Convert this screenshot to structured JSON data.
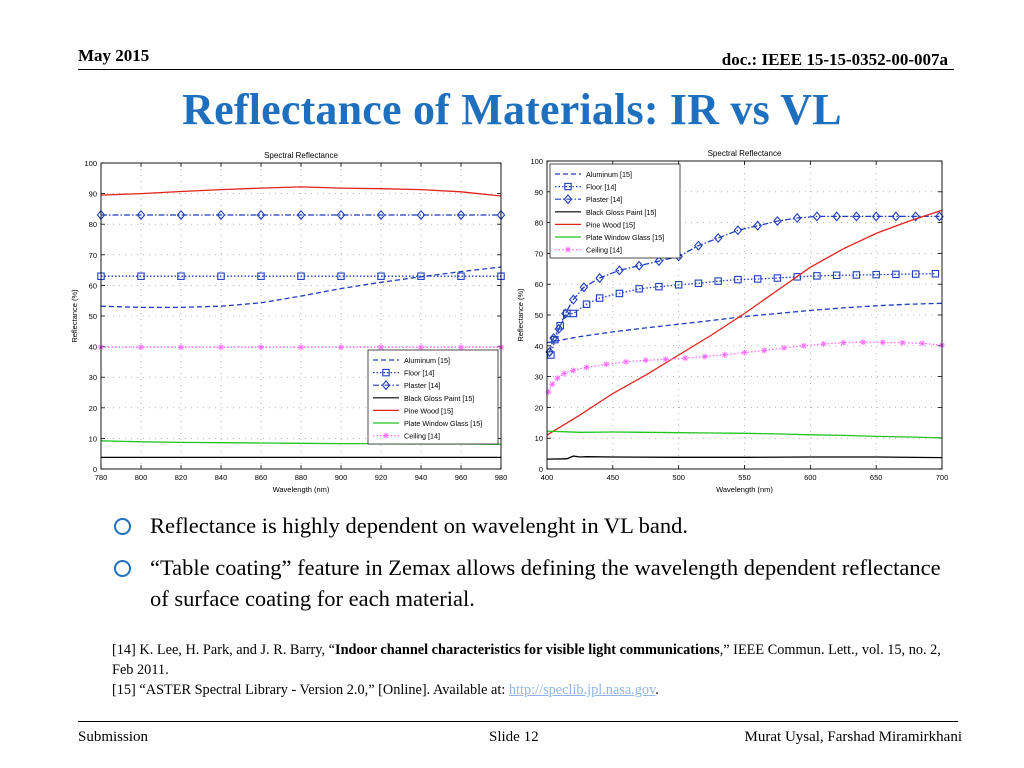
{
  "header": {
    "date": "May 2015",
    "doc": "doc.: IEEE 15-15-0352-00-007a"
  },
  "title": "Reflectance of Materials: IR vs VL",
  "bullets": [
    "Reflectance is highly dependent on wavelenght in VL band.",
    "“Table coating” feature in Zemax allows defining the wavelength dependent reflectance of surface coating for each material."
  ],
  "references": {
    "ref14_prefix": "[14] K. Lee, H. Park, and J. R. Barry, “",
    "ref14_title": "Indoor channel characteristics for visible light communications",
    "ref14_suffix": ",” IEEE Commun. Lett., vol. 15,  no. 2, Feb 2011.",
    "ref15_prefix": "[15] “ASTER Spectral Library - Version 2.0,” [Online]. Available at: ",
    "ref15_link": "http://speclib.jpl.nasa.gov",
    "ref15_suffix": "."
  },
  "footer": {
    "left": "Submission",
    "center": "Slide 12",
    "right": "Murat Uysal, Farshad Miramirkhani"
  },
  "chart_data": [
    {
      "type": "line",
      "title": "Spectral Reflectance",
      "xlabel": "Wavelength (nm)",
      "ylabel": "Reflectance (%)",
      "xlim": [
        780,
        980
      ],
      "ylim": [
        0,
        100
      ],
      "xticks": [
        780,
        800,
        820,
        840,
        860,
        880,
        900,
        920,
        940,
        960,
        980
      ],
      "yticks": [
        0,
        10,
        20,
        30,
        40,
        50,
        60,
        70,
        80,
        90,
        100
      ],
      "legend_position": "bottom-right",
      "series": [
        {
          "name": "Aluminum [15]",
          "color": "#1f3fbf",
          "dash": "dashed",
          "marker": "none",
          "x": [
            780,
            800,
            820,
            840,
            860,
            880,
            900,
            920,
            940,
            960,
            980
          ],
          "y": [
            53.2,
            52.8,
            52.8,
            53.2,
            54.3,
            56.5,
            59,
            61,
            62.8,
            64.5,
            66
          ]
        },
        {
          "name": "Floor [14]",
          "color": "#1f3fbf",
          "dash": "dotted",
          "marker": "square",
          "x": [
            780,
            800,
            820,
            840,
            860,
            880,
            900,
            920,
            940,
            960,
            980
          ],
          "y": [
            63,
            63,
            63,
            63,
            63,
            63,
            63,
            63,
            63,
            63,
            63
          ]
        },
        {
          "name": "Plaster [14]",
          "color": "#1f3fbf",
          "dash": "dashdot",
          "marker": "diamond",
          "x": [
            780,
            800,
            820,
            840,
            860,
            880,
            900,
            920,
            940,
            960,
            980
          ],
          "y": [
            83,
            83,
            83,
            83,
            83,
            83,
            83,
            83,
            83,
            83,
            83
          ]
        },
        {
          "name": "Black Gloss Paint [15]",
          "color": "#000000",
          "dash": "solid",
          "marker": "none",
          "x": [
            780,
            800,
            820,
            840,
            860,
            880,
            900,
            920,
            940,
            960,
            980
          ],
          "y": [
            3.8,
            3.8,
            3.8,
            3.8,
            3.8,
            3.8,
            3.8,
            3.8,
            3.8,
            3.8,
            3.8
          ]
        },
        {
          "name": "Pine Wood [15]",
          "color": "#e3221c",
          "dash": "solid",
          "marker": "none",
          "x": [
            780,
            800,
            820,
            840,
            860,
            880,
            900,
            920,
            940,
            960,
            980
          ],
          "y": [
            89.5,
            90,
            90.7,
            91.3,
            91.8,
            92.2,
            91.8,
            91.6,
            91.3,
            90.6,
            89.2
          ]
        },
        {
          "name": "Plate Window Glass [15]",
          "color": "#22c422",
          "dash": "solid",
          "marker": "none",
          "x": [
            780,
            800,
            820,
            840,
            860,
            880,
            900,
            920,
            940,
            960,
            980
          ],
          "y": [
            9.2,
            8.9,
            8.7,
            8.6,
            8.5,
            8.4,
            8.3,
            8.3,
            8.2,
            8.2,
            8.1
          ]
        },
        {
          "name": "Ceiling [14]",
          "color": "#ff6cff",
          "dash": "dotted",
          "marker": "star",
          "x": [
            780,
            800,
            820,
            840,
            860,
            880,
            900,
            920,
            940,
            960,
            980
          ],
          "y": [
            39.8,
            39.8,
            39.8,
            39.8,
            39.8,
            39.8,
            39.8,
            39.8,
            39.8,
            39.8,
            39.8
          ]
        }
      ]
    },
    {
      "type": "line",
      "title": "Spectral Reflectance",
      "xlabel": "Wavelength (nm)",
      "ylabel": "Reflectance (%)",
      "xlim": [
        400,
        700
      ],
      "ylim": [
        0,
        100
      ],
      "xticks": [
        400,
        450,
        500,
        550,
        600,
        650,
        700
      ],
      "yticks": [
        0,
        10,
        20,
        30,
        40,
        50,
        60,
        70,
        80,
        90,
        100
      ],
      "legend_position": "top-left",
      "series": [
        {
          "name": "Aluminum [15]",
          "color": "#1f3fbf",
          "dash": "dashed",
          "marker": "none",
          "x": [
            400,
            425,
            450,
            475,
            500,
            525,
            550,
            575,
            600,
            625,
            650,
            675,
            700
          ],
          "y": [
            41,
            43,
            44.5,
            45.8,
            47,
            48.2,
            49.5,
            50.5,
            51.5,
            52.3,
            53,
            53.5,
            53.8
          ]
        },
        {
          "name": "Floor [14]",
          "color": "#1f3fbf",
          "dash": "dotted",
          "marker": "square",
          "x": [
            403,
            406,
            410,
            415,
            420,
            430,
            440,
            455,
            470,
            485,
            500,
            515,
            530,
            545,
            560,
            575,
            590,
            605,
            620,
            635,
            650,
            665,
            680,
            695
          ],
          "y": [
            37,
            42,
            46.5,
            50.5,
            50.5,
            53.5,
            55.5,
            57,
            58.5,
            59.2,
            59.8,
            60.3,
            61,
            61.5,
            61.7,
            62,
            62.4,
            62.7,
            62.9,
            63,
            63.1,
            63.2,
            63.3,
            63.4
          ]
        },
        {
          "name": "Plaster [14]",
          "color": "#1f3fbf",
          "dash": "dashdot",
          "marker": "diamond",
          "x": [
            402,
            405,
            409,
            414,
            420,
            428,
            440,
            455,
            470,
            485,
            500,
            515,
            530,
            545,
            560,
            575,
            590,
            605,
            620,
            635,
            650,
            665,
            680,
            698
          ],
          "y": [
            38,
            42.5,
            45.5,
            50.5,
            55,
            59,
            62,
            64.5,
            66,
            67.5,
            69,
            72.5,
            75,
            77.5,
            79,
            80.5,
            81.5,
            82,
            82,
            82,
            82,
            82,
            82,
            82
          ]
        },
        {
          "name": "Black Gloss Paint [15]",
          "color": "#000000",
          "dash": "solid",
          "marker": "none",
          "x": [
            400,
            415,
            420,
            425,
            430,
            450,
            500,
            550,
            600,
            650,
            700
          ],
          "y": [
            3.2,
            3.3,
            4.2,
            3.9,
            4,
            3.9,
            3.8,
            3.8,
            3.9,
            3.9,
            3.7
          ]
        },
        {
          "name": "Pine Wood [15]",
          "color": "#e3221c",
          "dash": "solid",
          "marker": "none",
          "x": [
            400,
            425,
            450,
            475,
            500,
            525,
            550,
            575,
            600,
            625,
            650,
            675,
            700
          ],
          "y": [
            11,
            17.5,
            24.5,
            30.5,
            37,
            43.5,
            50.5,
            58,
            65.5,
            71.5,
            76.5,
            80.5,
            84
          ]
        },
        {
          "name": "Plate Window Glass [15]",
          "color": "#22c422",
          "dash": "solid",
          "marker": "none",
          "x": [
            400,
            425,
            450,
            475,
            500,
            525,
            550,
            575,
            600,
            625,
            650,
            675,
            700
          ],
          "y": [
            12.3,
            11.9,
            12,
            11.9,
            11.8,
            11.7,
            11.6,
            11.4,
            11.1,
            10.9,
            10.6,
            10.4,
            10.1
          ]
        },
        {
          "name": "Ceiling [14]",
          "color": "#ff6cff",
          "dash": "dotted",
          "marker": "star",
          "x": [
            401,
            404,
            408,
            413,
            420,
            430,
            445,
            460,
            475,
            490,
            505,
            520,
            535,
            550,
            565,
            580,
            595,
            610,
            625,
            640,
            655,
            670,
            685,
            700
          ],
          "y": [
            25,
            27.5,
            29.5,
            31,
            32,
            33,
            34,
            34.8,
            35.3,
            35.6,
            36,
            36.5,
            37.1,
            37.8,
            38.5,
            39.3,
            40,
            40.6,
            41,
            41.2,
            41.1,
            41,
            40.8,
            40.2
          ]
        }
      ]
    }
  ]
}
